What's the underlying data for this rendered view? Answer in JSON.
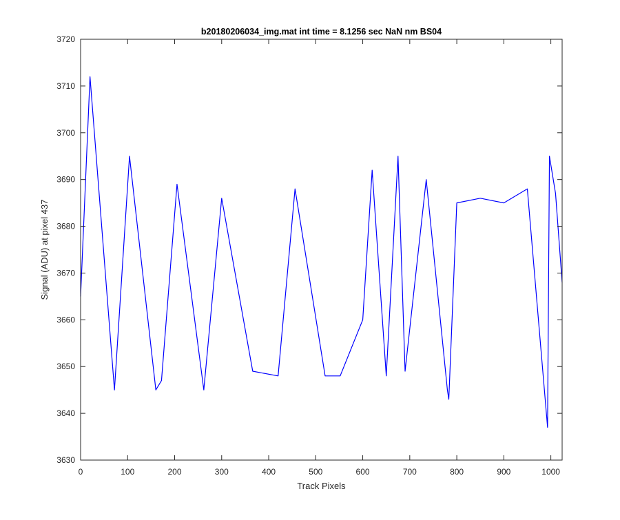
{
  "chart_data": {
    "type": "line",
    "title": "b20180206034_img.mat int time = 8.1256 sec  NaN nm BS04",
    "xlabel": "Track Pixels",
    "ylabel": "Signal (ADU) at pixel 437",
    "xlim": [
      0,
      1024
    ],
    "ylim": [
      3630,
      3720
    ],
    "xticks": [
      0,
      100,
      200,
      300,
      400,
      500,
      600,
      700,
      800,
      900,
      1000
    ],
    "yticks": [
      3630,
      3640,
      3650,
      3660,
      3670,
      3680,
      3690,
      3700,
      3710,
      3720
    ],
    "grid": false,
    "legend": "none",
    "series": [
      {
        "color": "#0000ff",
        "x": [
          0,
          20,
          72,
          104,
          160,
          172,
          205,
          262,
          300,
          366,
          420,
          456,
          520,
          552,
          600,
          620,
          650,
          675,
          690,
          735,
          780,
          783,
          800,
          850,
          900,
          950,
          993,
          997,
          1010,
          1024
        ],
        "values": [
          3665,
          3712,
          3645,
          3695,
          3645,
          3647,
          3689,
          3645,
          3686,
          3649,
          3648,
          3688,
          3648,
          3648,
          3660,
          3692,
          3648,
          3695,
          3649,
          3690,
          3645,
          3643,
          3685,
          3686,
          3685,
          3688,
          3637,
          3695,
          3687,
          3668
        ]
      }
    ]
  }
}
